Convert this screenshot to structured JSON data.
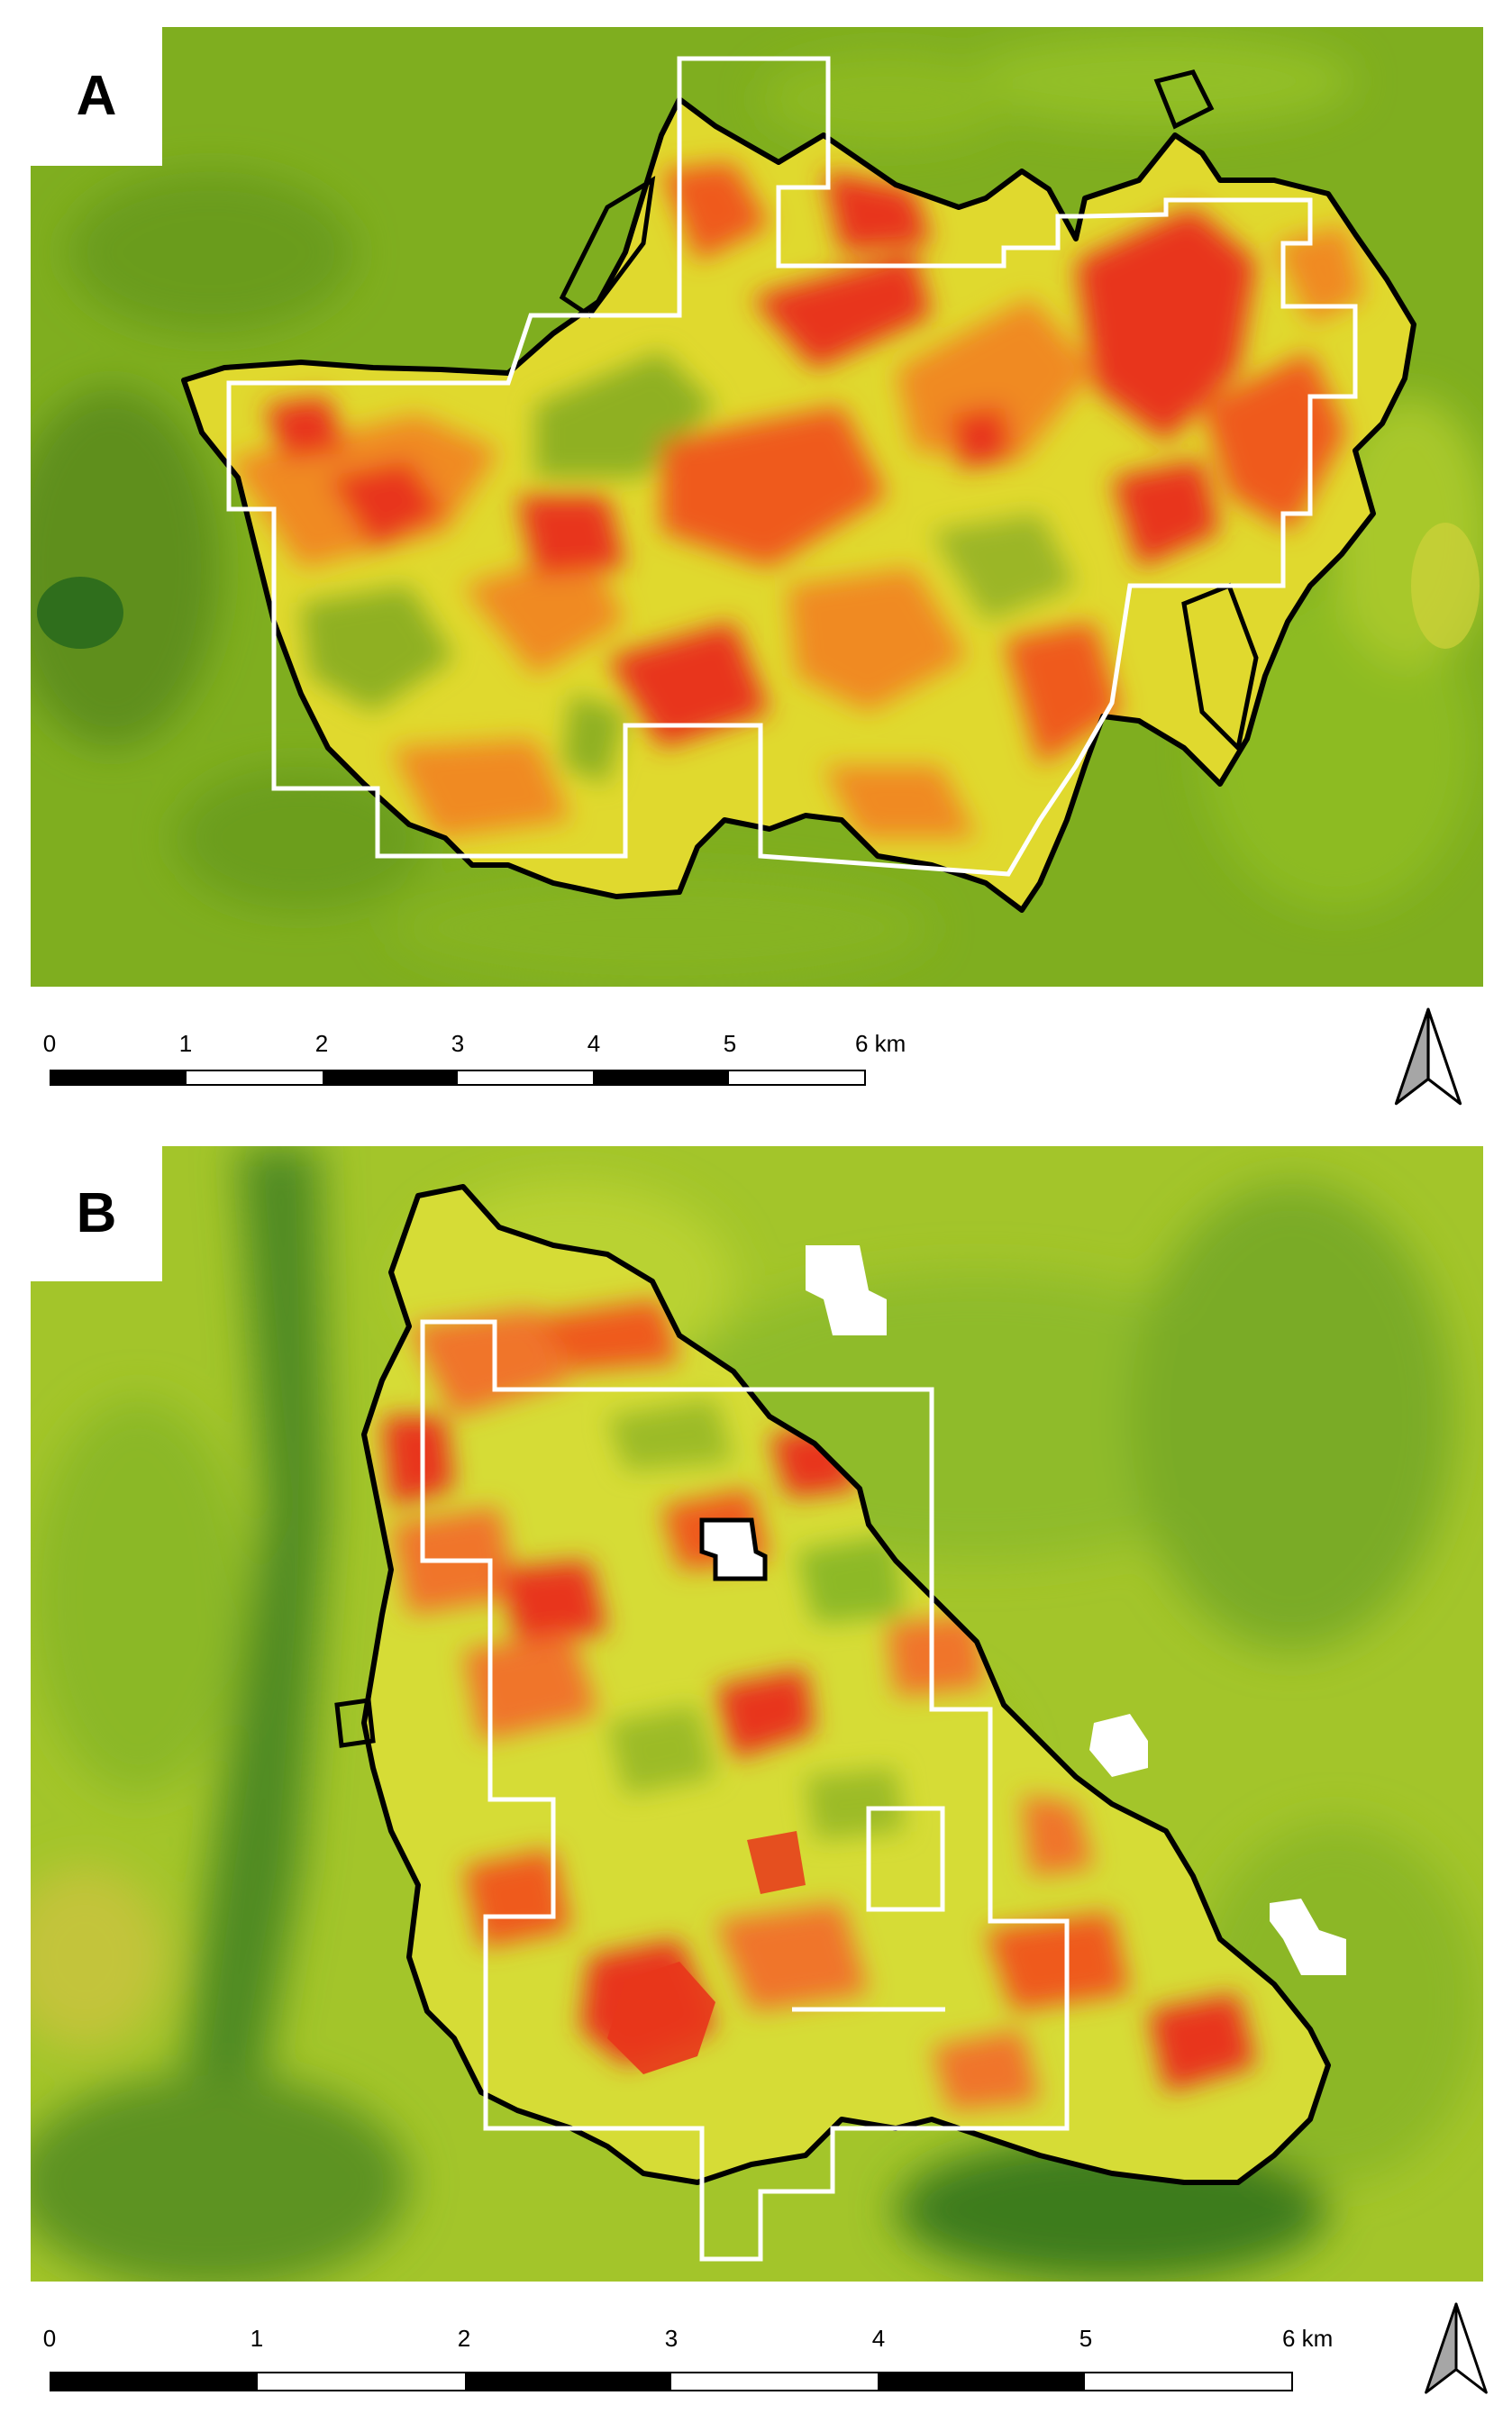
{
  "panels": [
    {
      "label": "A",
      "scale": {
        "ticks": [
          "0",
          "1",
          "2",
          "3",
          "4",
          "5",
          "6 km"
        ]
      }
    },
    {
      "label": "B",
      "scale": {
        "ticks": [
          "0",
          "1",
          "2",
          "3",
          "4",
          "5",
          "6 km"
        ]
      }
    }
  ],
  "legend_colors": {
    "background_vegetation": "#7fae1f",
    "dense_vegetation": "#2f6e1c",
    "moderate_severity": "#f3e23a",
    "high_severity": "#e8361b",
    "fire_perimeter_line": "#000000",
    "study_block_line": "#ffffff",
    "masked_cloud": "#ffffff"
  },
  "icons": {
    "north_arrow": "north-arrow-icon"
  }
}
